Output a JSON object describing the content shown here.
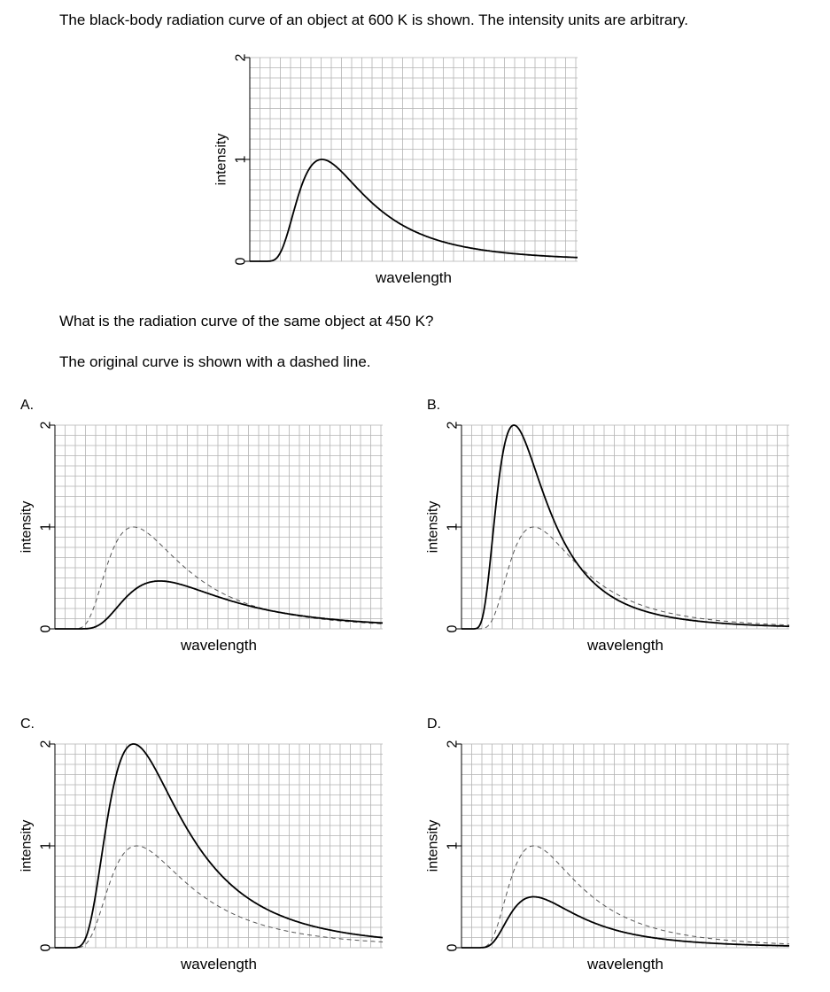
{
  "question": {
    "intro": "The black-body radiation curve of an object at 600 K is shown. The intensity units are arbitrary.",
    "prompt": "What is the radiation curve of the same object at 450 K?",
    "note": "The original curve is shown with a dashed line."
  },
  "options": {
    "A": "A.",
    "B": "B.",
    "C": "C.",
    "D": "D."
  },
  "chart_data": [
    {
      "id": "main",
      "type": "line",
      "xlabel": "wavelength",
      "ylabel": "intensity",
      "yticks": [
        "0",
        "1",
        "2"
      ],
      "ylim": [
        0,
        2
      ],
      "grid": true,
      "series": [
        {
          "name": "600 K",
          "style": "solid",
          "peak_intensity": 1.0,
          "peak_fraction": 0.22
        }
      ]
    },
    {
      "id": "A",
      "type": "line",
      "xlabel": "wavelength",
      "ylabel": "intensity",
      "yticks": [
        "0",
        "1",
        "2"
      ],
      "ylim": [
        0,
        2
      ],
      "grid": true,
      "series": [
        {
          "name": "600 K (original)",
          "style": "dashed",
          "peak_intensity": 1.0,
          "peak_fraction": 0.24
        },
        {
          "name": "450 K",
          "style": "solid",
          "peak_intensity": 0.47,
          "peak_fraction": 0.32
        }
      ]
    },
    {
      "id": "B",
      "type": "line",
      "xlabel": "wavelength",
      "ylabel": "intensity",
      "yticks": [
        "0",
        "1",
        "2"
      ],
      "ylim": [
        0,
        2
      ],
      "grid": true,
      "series": [
        {
          "name": "600 K (original)",
          "style": "dashed",
          "peak_intensity": 1.0,
          "peak_fraction": 0.22
        },
        {
          "name": "450 K",
          "style": "solid",
          "peak_intensity": 2.0,
          "peak_fraction": 0.16
        }
      ]
    },
    {
      "id": "C",
      "type": "line",
      "xlabel": "wavelength",
      "ylabel": "intensity",
      "yticks": [
        "0",
        "1",
        "2"
      ],
      "ylim": [
        0,
        2
      ],
      "grid": true,
      "series": [
        {
          "name": "600 K (original)",
          "style": "dashed",
          "peak_intensity": 1.0,
          "peak_fraction": 0.25
        },
        {
          "name": "450 K",
          "style": "solid",
          "peak_intensity": 2.0,
          "peak_fraction": 0.24
        }
      ]
    },
    {
      "id": "D",
      "type": "line",
      "xlabel": "wavelength",
      "ylabel": "intensity",
      "yticks": [
        "0",
        "1",
        "2"
      ],
      "ylim": [
        0,
        2
      ],
      "grid": true,
      "series": [
        {
          "name": "600 K (original)",
          "style": "dashed",
          "peak_intensity": 1.0,
          "peak_fraction": 0.22
        },
        {
          "name": "450 K",
          "style": "solid",
          "peak_intensity": 0.5,
          "peak_fraction": 0.22
        }
      ]
    }
  ]
}
